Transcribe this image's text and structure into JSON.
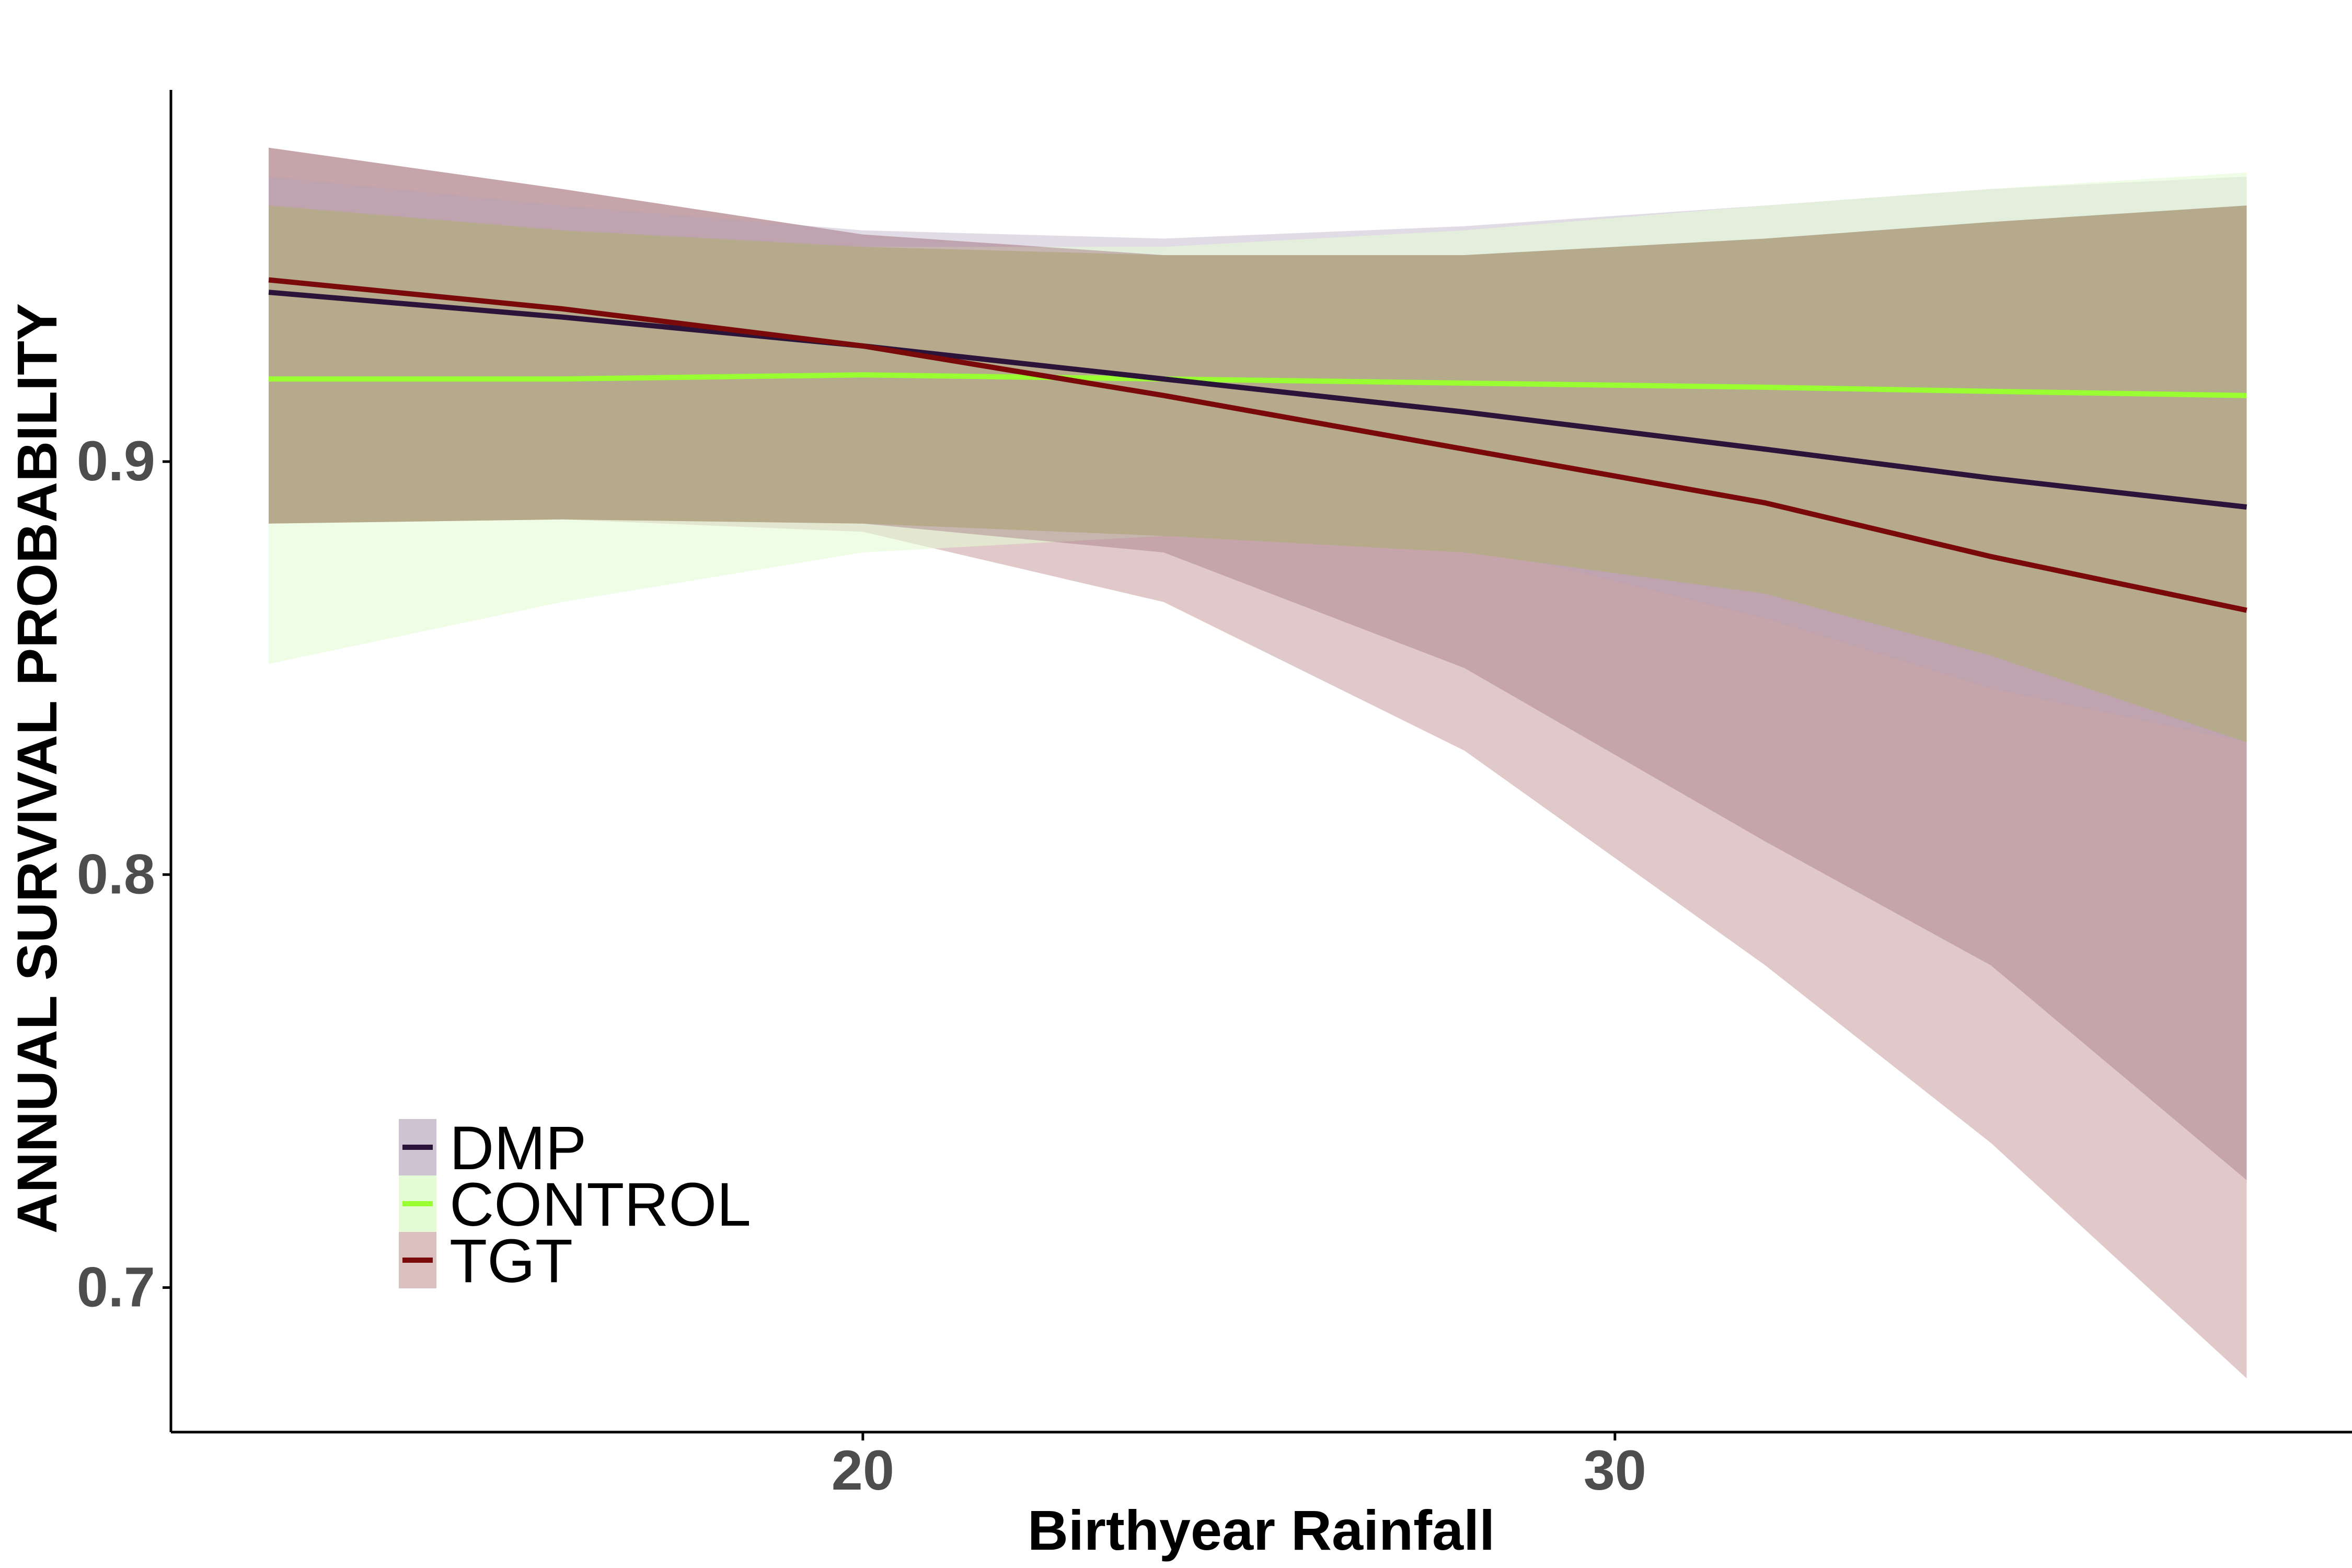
{
  "chart_data": {
    "type": "line",
    "xlabel": "Birthyear Rainfall",
    "ylabel": "ANNUAL SURVIVAL PROBABILITY",
    "xlim": [
      10.8,
      39.8
    ],
    "ylim": [
      0.665,
      0.99
    ],
    "x_ticks": [
      20,
      30
    ],
    "x_tick_labels": [
      "20",
      "30"
    ],
    "y_ticks": [
      0.7,
      0.8,
      0.9
    ],
    "y_tick_labels": [
      "0.7",
      "0.8",
      "0.9"
    ],
    "grid": false,
    "legend_position": "bottom-left",
    "x": [
      12.1,
      16,
      20,
      24,
      28,
      32,
      35,
      38.4
    ],
    "series": [
      {
        "name": "DMP",
        "color": "#2a1439",
        "band_color": "#cdc3d3",
        "values": [
          0.941,
          0.935,
          0.928,
          0.92,
          0.912,
          0.903,
          0.896,
          0.889
        ],
        "lower": [
          0.885,
          0.888,
          0.889,
          0.887,
          0.88,
          0.862,
          0.845,
          0.832
        ],
        "upper": [
          0.969,
          0.962,
          0.956,
          0.954,
          0.957,
          0.962,
          0.966,
          0.969
        ]
      },
      {
        "name": "CONTROL",
        "color": "#99ff33",
        "band_color": "#e5fbd5",
        "values": [
          0.92,
          0.92,
          0.921,
          0.92,
          0.919,
          0.918,
          0.917,
          0.916
        ],
        "lower": [
          0.851,
          0.866,
          0.878,
          0.882,
          0.878,
          0.868,
          0.853,
          0.832
        ],
        "upper": [
          0.962,
          0.956,
          0.952,
          0.952,
          0.956,
          0.962,
          0.966,
          0.97
        ]
      },
      {
        "name": "TGT",
        "color": "#7a0a0a",
        "band_color": "#dcc0c0",
        "values": [
          0.944,
          0.937,
          0.928,
          0.916,
          0.903,
          0.89,
          0.877,
          0.864
        ],
        "lower": [
          0.885,
          0.886,
          0.883,
          0.866,
          0.83,
          0.778,
          0.735,
          0.678
        ],
        "upper": [
          0.976,
          0.966,
          0.955,
          0.95,
          0.95,
          0.954,
          0.958,
          0.962
        ],
        "inner_lower": [
          0.885,
          0.886,
          0.885,
          0.878,
          0.85,
          0.808,
          0.778,
          0.726
        ]
      }
    ]
  },
  "legend": {
    "items": [
      {
        "label": "DMP"
      },
      {
        "label": "CONTROL"
      },
      {
        "label": "TGT"
      }
    ]
  }
}
